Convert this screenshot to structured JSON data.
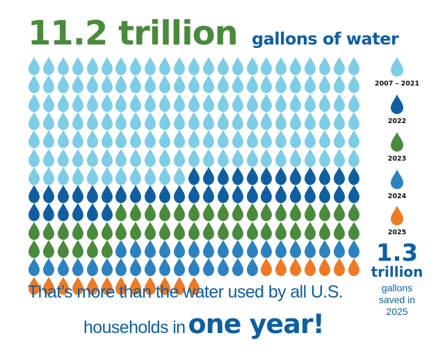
{
  "headline": {
    "amount": "11.2 trillion",
    "unit": "gallons of water"
  },
  "legend": {
    "items": [
      {
        "label": "2007 – 2021",
        "color": "#7ecde6"
      },
      {
        "label": "2022",
        "color": "#0f5fa0"
      },
      {
        "label": "2023",
        "color": "#4a8a3c"
      },
      {
        "label": "2024",
        "color": "#2c82bf"
      },
      {
        "label": "2025",
        "color": "#ee7a26"
      }
    ]
  },
  "drop_grid": {
    "columns": 23,
    "counts": [
      149,
      41,
      46,
      33,
      19
    ]
  },
  "saved": {
    "amount": "1.3",
    "unit": "trillion",
    "text_line1": "gallons",
    "text_line2": "saved in",
    "text_line3": "2025"
  },
  "tagline": {
    "line1": "That’s more than the water used by all U.S.",
    "line2": "households in",
    "emphasis": "one year!"
  }
}
